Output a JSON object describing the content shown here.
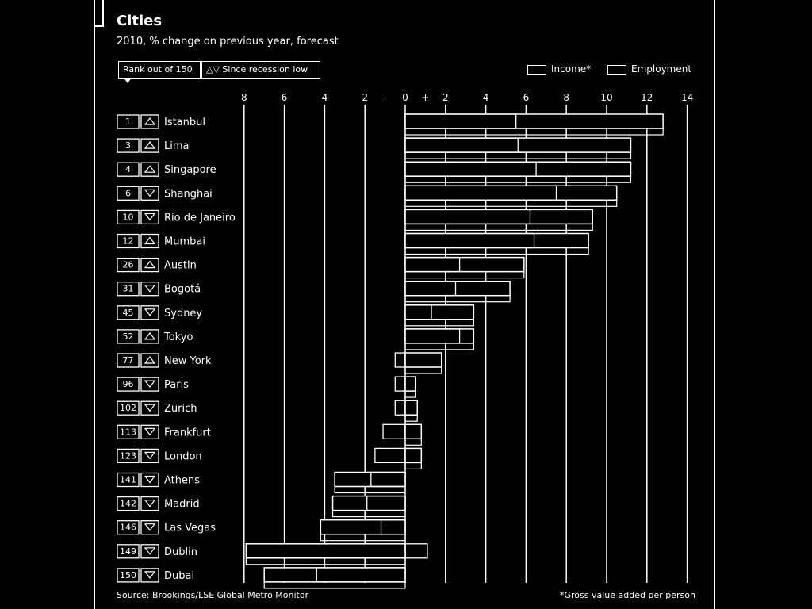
{
  "title": "Cities",
  "subtitle": "2010, % change on previous year, forecast",
  "controls": {
    "rank_label": "Rank out of 150",
    "recession_label": "Since recession low",
    "recession_arrows": "△▽"
  },
  "legend": {
    "income": "Income*",
    "employment": "Employment"
  },
  "source": "Source: Brookings/LSE Global Metro Monitor",
  "footnote": "*Gross value added per person",
  "chart_data": {
    "type": "bar",
    "orientation": "horizontal",
    "x_tick_labels": [
      "8",
      "6",
      "4",
      "2",
      "-",
      "0",
      "+",
      "2",
      "4",
      "6",
      "8",
      "10",
      "12",
      "14"
    ],
    "x_ticks": [
      -8,
      -6,
      -4,
      -2,
      0,
      2,
      4,
      6,
      8,
      10,
      12,
      14
    ],
    "xlim": [
      -8,
      14
    ],
    "grid": true,
    "legend_position": "top-right",
    "categories": [
      "Istanbul",
      "Lima",
      "Singapore",
      "Shanghai",
      "Rio de Janeiro",
      "Mumbai",
      "Austin",
      "Bogotá",
      "Sydney",
      "Tokyo",
      "New York",
      "Paris",
      "Zurich",
      "Frankfurt",
      "London",
      "Athens",
      "Madrid",
      "Las Vegas",
      "Dublin",
      "Dubai"
    ],
    "ranks": [
      "1",
      "3",
      "4",
      "6",
      "10",
      "12",
      "26",
      "31",
      "45",
      "52",
      "77",
      "96",
      "102",
      "113",
      "123",
      "141",
      "142",
      "146",
      "149",
      "150"
    ],
    "direction": [
      "up",
      "up",
      "up",
      "down",
      "down",
      "up",
      "up",
      "down",
      "down",
      "up",
      "up",
      "down",
      "down",
      "down",
      "down",
      "down",
      "down",
      "down",
      "down",
      "down"
    ],
    "series": [
      {
        "name": "Income*",
        "values": [
          12.8,
          11.2,
          11.2,
          10.5,
          9.3,
          9.1,
          5.9,
          5.2,
          3.4,
          3.4,
          1.8,
          0.5,
          0.6,
          0.8,
          0.8,
          -3.5,
          -3.6,
          -4.2,
          -7.9,
          -7.0
        ]
      },
      {
        "name": "Employment",
        "values": [
          5.5,
          5.6,
          6.5,
          7.5,
          6.2,
          6.4,
          2.7,
          2.5,
          1.3,
          2.7,
          -0.5,
          -0.5,
          -0.5,
          -1.1,
          -1.5,
          -1.7,
          -1.9,
          -1.2,
          1.1,
          -4.4
        ]
      }
    ]
  }
}
